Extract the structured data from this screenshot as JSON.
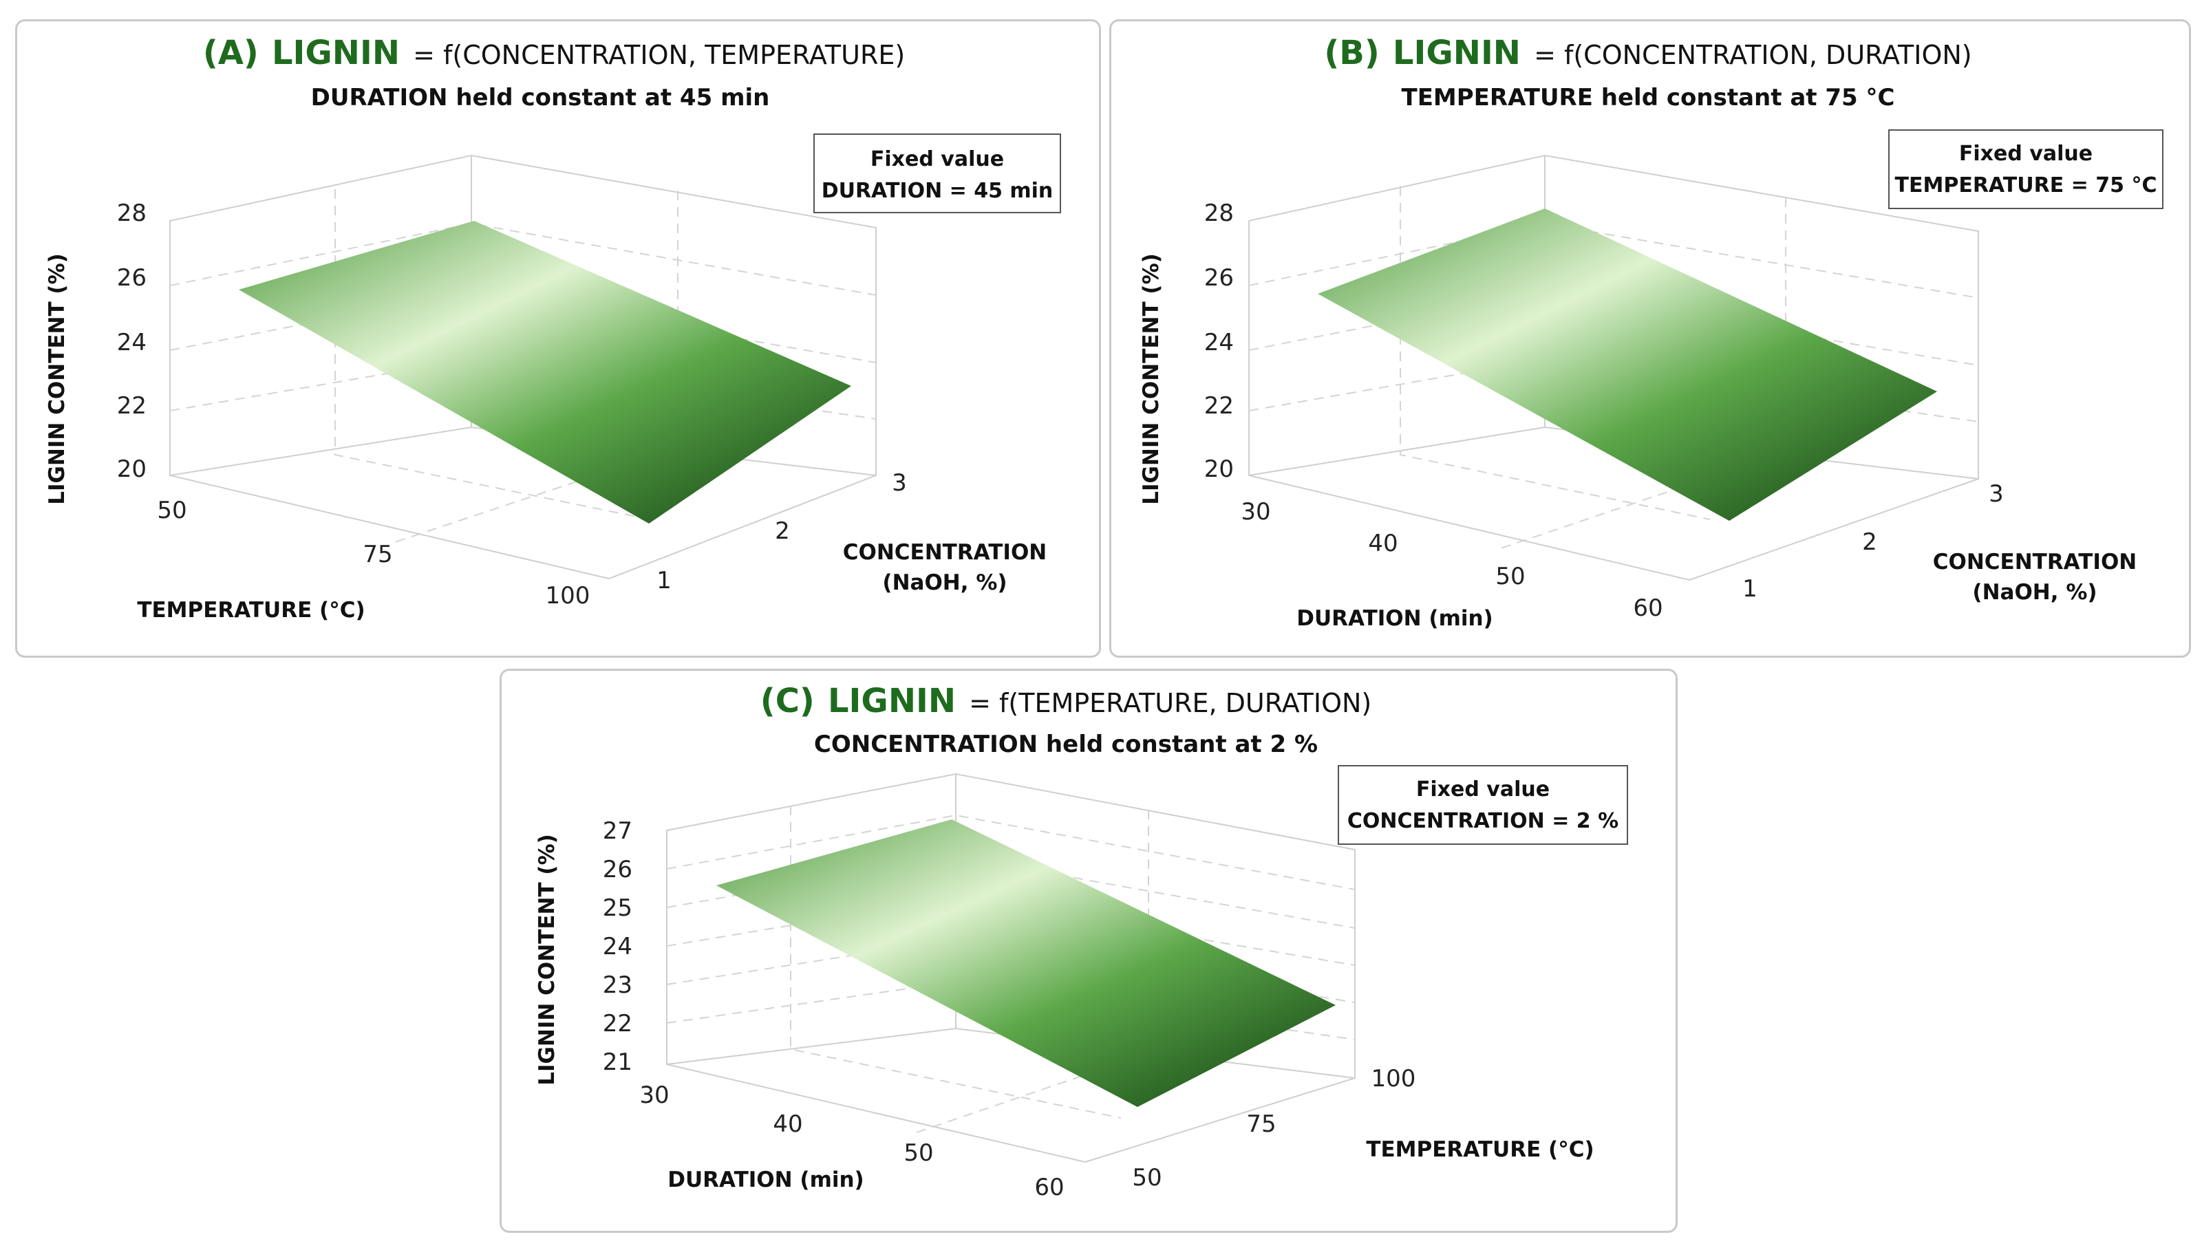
{
  "chart_data": [
    {
      "type": "surface",
      "panel_label": "(A)",
      "response": "LIGNIN",
      "title_rest": "= f(CONCENTRATION, TEMPERATURE)",
      "subtitle": "DURATION held constant at 45 min",
      "fixed_box": [
        "Fixed value",
        "DURATION = 45 min"
      ],
      "zlabel": "LIGNIN CONTENT (%)",
      "zticks": [
        "20",
        "22",
        "24",
        "26",
        "28"
      ],
      "zlim": [
        20,
        28
      ],
      "xlabel": [
        "TEMPERATURE (°C)"
      ],
      "xticks": [
        "50",
        "75",
        "100"
      ],
      "xlim": [
        50,
        100
      ],
      "ylabel": [
        "CONCENTRATION",
        "(NaOH, %)"
      ],
      "yticks": [
        "1",
        "2",
        "3"
      ],
      "ylim": [
        1,
        3
      ],
      "surface_corners": [
        {
          "x": 50,
          "y": 1,
          "z": 25.7
        },
        {
          "x": 100,
          "y": 1,
          "z": 21.2
        },
        {
          "x": 100,
          "y": 3,
          "z": 22.4
        },
        {
          "x": 50,
          "y": 3,
          "z": 26.8
        }
      ]
    },
    {
      "type": "surface",
      "panel_label": "(B)",
      "response": "LIGNIN",
      "title_rest": "= f(CONCENTRATION, DURATION)",
      "subtitle": "TEMPERATURE held constant at 75 °C",
      "fixed_box": [
        "Fixed value",
        "TEMPERATURE = 75 °C"
      ],
      "zlabel": "LIGNIN CONTENT (%)",
      "zticks": [
        "20",
        "22",
        "24",
        "26",
        "28"
      ],
      "zlim": [
        20,
        28
      ],
      "xlabel": [
        "DURATION (min)"
      ],
      "xticks": [
        "30",
        "40",
        "50",
        "60"
      ],
      "xlim": [
        30,
        60
      ],
      "ylabel": [
        "CONCENTRATION",
        "(NaOH, %)"
      ],
      "yticks": [
        "1",
        "2",
        "3"
      ],
      "ylim": [
        1,
        3
      ],
      "surface_corners": [
        {
          "x": 30,
          "y": 1,
          "z": 25.8
        },
        {
          "x": 60,
          "y": 1,
          "z": 21.3
        },
        {
          "x": 60,
          "y": 3,
          "z": 22.6
        },
        {
          "x": 30,
          "y": 3,
          "z": 27.2
        }
      ]
    },
    {
      "type": "surface",
      "panel_label": "(C)",
      "response": "LIGNIN",
      "title_rest": "= f(TEMPERATURE, DURATION)",
      "subtitle": "CONCENTRATION held constant at 2 %",
      "fixed_box": [
        "Fixed value",
        "CONCENTRATION = 2 %"
      ],
      "zlabel": "LIGNIN CONTENT (%)",
      "zticks": [
        "21",
        "22",
        "23",
        "24",
        "25",
        "26",
        "27"
      ],
      "zlim": [
        21,
        27
      ],
      "xlabel": [
        "DURATION (min)"
      ],
      "xticks": [
        "30",
        "40",
        "50",
        "60"
      ],
      "xlim": [
        30,
        60
      ],
      "ylabel": [
        "TEMPERATURE (°C)"
      ],
      "yticks": [
        "50",
        "75",
        "100"
      ],
      "ylim": [
        50,
        100
      ],
      "surface_corners": [
        {
          "x": 30,
          "y": 50,
          "z": 25.4
        },
        {
          "x": 60,
          "y": 50,
          "z": 21.7
        },
        {
          "x": 60,
          "y": 100,
          "z": 22.9
        },
        {
          "x": 30,
          "y": 100,
          "z": 26.6
        }
      ]
    }
  ],
  "colors": {
    "surface_light": "#dff2d0",
    "surface_mid": "#6fbf5a",
    "surface_dark": "#0e3d10",
    "title_green": "#1e6b1e"
  }
}
